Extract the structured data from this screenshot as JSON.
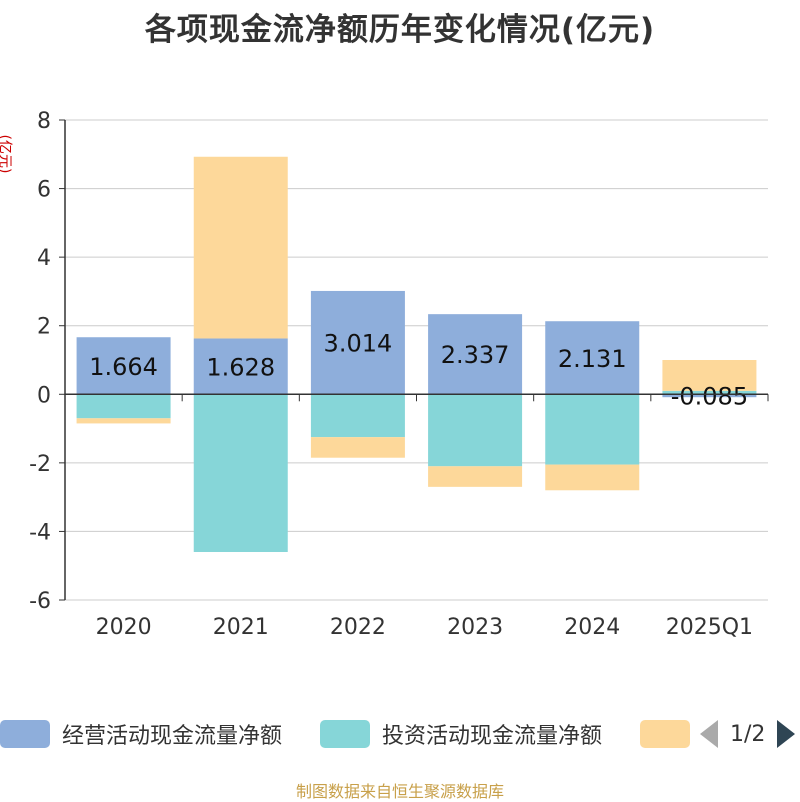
{
  "title": "各项现金流净额历年变化情况(亿元)",
  "unit_label": "(亿元)",
  "source": "制图数据来自恒生聚源数据库",
  "legend": {
    "items": [
      {
        "label": "经营活动现金流量净额",
        "color": "#8eaedb"
      },
      {
        "label": "投资活动现金流量净额",
        "color": "#86d6d8"
      },
      {
        "label": "",
        "color": "#fdd89a"
      }
    ],
    "page": "1/2"
  },
  "chart_data": {
    "type": "bar",
    "stacked": true,
    "categories": [
      "2020",
      "2021",
      "2022",
      "2023",
      "2024",
      "2025Q1"
    ],
    "ylim": [
      -6,
      8
    ],
    "yticks": [
      -6,
      -4,
      -2,
      0,
      2,
      4,
      6,
      8
    ],
    "grid": true,
    "series": [
      {
        "name": "经营活动现金流量净额",
        "color": "#8eaedb",
        "values": [
          1.664,
          1.628,
          3.014,
          2.337,
          2.131,
          -0.085
        ],
        "labels": [
          "1.664",
          "1.628",
          "3.014",
          "2.337",
          "2.131",
          "-0.085"
        ]
      },
      {
        "name": "投资活动现金流量净额",
        "color": "#86d6d8",
        "values": [
          -0.7,
          -4.6,
          -1.25,
          -2.1,
          -2.05,
          0.1
        ]
      },
      {
        "color": "#fdd89a",
        "values": [
          -0.15,
          5.3,
          -0.6,
          -0.6,
          -0.75,
          0.9
        ]
      }
    ]
  }
}
